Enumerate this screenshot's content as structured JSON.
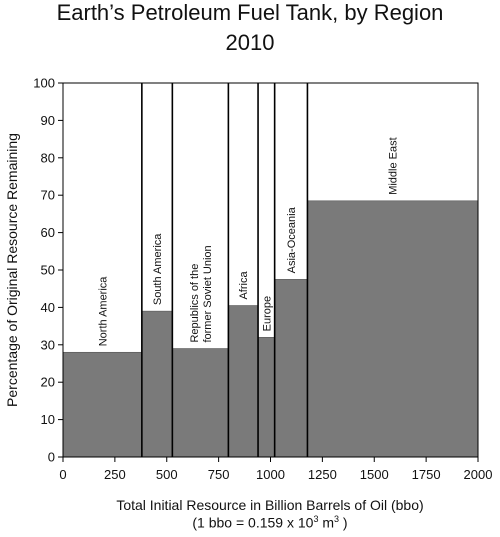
{
  "chart_data": {
    "type": "bar",
    "title": "Earth’s Petroleum Fuel Tank, by Region",
    "subtitle": "2010",
    "xlabel": "Total Initial Resource in Billion Barrels of Oil (bbo)",
    "xlabel_note_prefix": "(1 bbo = 0.159 x 10",
    "xlabel_note_exp1": "3",
    "xlabel_note_mid": " m",
    "xlabel_note_exp2": "3",
    "xlabel_note_suffix": " )",
    "ylabel": "Percentage of Original Resource Remaining",
    "xlim": [
      0,
      2000
    ],
    "ylim": [
      0,
      100
    ],
    "xticks": [
      0,
      250,
      500,
      750,
      1000,
      1250,
      1500,
      1750,
      2000
    ],
    "yticks": [
      0,
      10,
      20,
      30,
      40,
      50,
      60,
      70,
      80,
      90,
      100
    ],
    "grid": false,
    "regions": [
      {
        "label": "North America",
        "label_lines": [
          "North America"
        ],
        "x_start": 0,
        "x_end": 380,
        "value": 28
      },
      {
        "label": "South America",
        "label_lines": [
          "South America"
        ],
        "x_start": 380,
        "x_end": 527,
        "value": 39
      },
      {
        "label": "Republics of the former Soviet Union",
        "label_lines": [
          "Republics of the",
          "former Soviet Union"
        ],
        "x_start": 527,
        "x_end": 797,
        "value": 29
      },
      {
        "label": "Africa",
        "label_lines": [
          "Africa"
        ],
        "x_start": 797,
        "x_end": 940,
        "value": 40.5
      },
      {
        "label": "Europe",
        "label_lines": [
          "Europe"
        ],
        "x_start": 940,
        "x_end": 1020,
        "value": 32
      },
      {
        "label": "Asia-Oceania",
        "label_lines": [
          "Asia-Oceania"
        ],
        "x_start": 1020,
        "x_end": 1178,
        "value": 47.5
      },
      {
        "label": "Middle East",
        "label_lines": [
          "Middle East"
        ],
        "x_start": 1178,
        "x_end": 2000,
        "value": 68.5
      }
    ]
  },
  "colors": {
    "bar_fill": "#7a7a7a",
    "divider": "#000000",
    "axis": "#000000"
  }
}
